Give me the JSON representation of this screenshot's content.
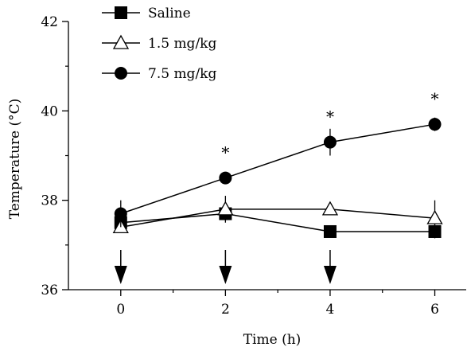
{
  "chart_data": {
    "type": "line",
    "xlabel": "Time (h)",
    "ylabel": "Temperature (°C)",
    "xlim": [
      -1,
      6.6
    ],
    "ylim": [
      36,
      42
    ],
    "xticks": [
      0,
      2,
      4,
      6
    ],
    "xticks_minor": [
      1,
      3,
      5
    ],
    "yticks": [
      36,
      38,
      40,
      42
    ],
    "yticks_minor": [
      37,
      39,
      41
    ],
    "x_tick_labels": [
      "0",
      "2",
      "4",
      "6"
    ],
    "y_tick_labels": [
      "36",
      "38",
      "40",
      "42"
    ],
    "legend_position": "top-left",
    "series": [
      {
        "name": "Saline",
        "marker": "filled-square",
        "x": [
          0,
          2,
          4,
          6
        ],
        "y": [
          37.5,
          37.7,
          37.3,
          37.3
        ],
        "err": [
          0.1,
          0.15,
          0.05,
          0.15
        ]
      },
      {
        "name": "1.5 mg/kg",
        "marker": "open-triangle",
        "x": [
          0,
          2,
          4,
          6
        ],
        "y": [
          37.4,
          37.8,
          37.8,
          37.6
        ],
        "err": [
          0.1,
          0.3,
          0.1,
          0.4
        ]
      },
      {
        "name": "7.5 mg/kg",
        "marker": "filled-circle",
        "x": [
          0,
          2,
          4,
          6
        ],
        "y": [
          37.7,
          38.5,
          39.3,
          39.7
        ],
        "err": [
          0.3,
          0.1,
          0.3,
          0.15
        ]
      }
    ],
    "annotations": [
      {
        "text": "*",
        "x": 2,
        "y": 38.5
      },
      {
        "text": "*",
        "x": 4,
        "y": 39.3
      },
      {
        "text": "*",
        "x": 6,
        "y": 39.7
      }
    ],
    "injection_arrows_x": [
      0,
      2,
      4
    ]
  }
}
